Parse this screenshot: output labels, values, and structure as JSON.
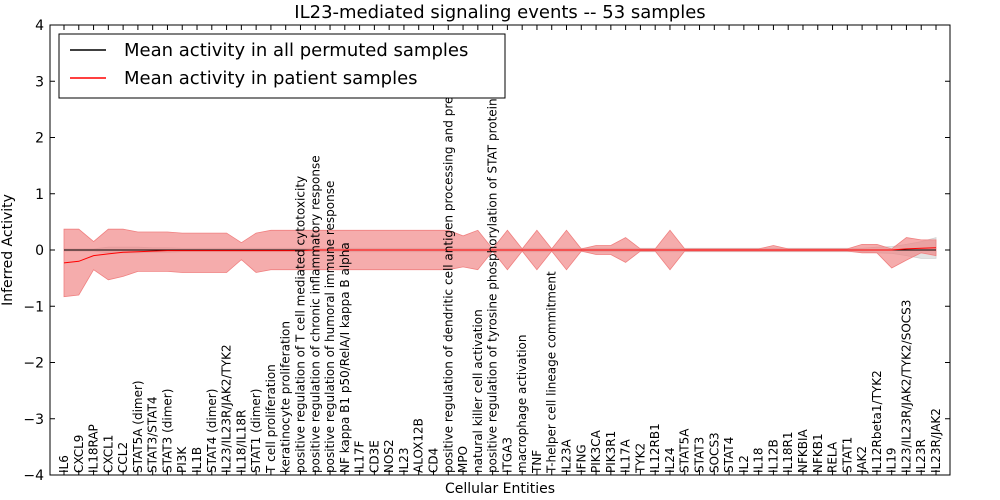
{
  "chart_data": {
    "type": "line",
    "title": "IL23-mediated signaling events -- 53 samples",
    "xlabel": "Cellular Entities",
    "ylabel": "Inferred Activity",
    "ylim": [
      -4,
      4
    ],
    "yticks": [
      -4,
      -3,
      -2,
      -1,
      0,
      1,
      2,
      3,
      4
    ],
    "ytick_labels": [
      "−4",
      "−3",
      "−2",
      "−1",
      "0",
      "1",
      "2",
      "3",
      "4"
    ],
    "legend_position": "top-left",
    "categories": [
      "IL6",
      "CXCL9",
      "IL18RAP",
      "CXCL1",
      "CCL2",
      "STAT5A (dimer)",
      "STAT3/STAT4",
      "STAT3 (dimer)",
      "PI3K",
      "IL1B",
      "STAT4 (dimer)",
      "IL23/IL23R/JAK2/TYK2",
      "IL18/IL18R",
      "STAT1 (dimer)",
      "T cell proliferation",
      "keratinocyte proliferation",
      "positive regulation of T cell mediated cytotoxicity",
      "positive regulation of chronic inflammatory response",
      "positive regulation of humoral immune response",
      "NF kappa B1 p50/RelA/I kappa B alpha",
      "IL17F",
      "CD3E",
      "NOS2",
      "IL23",
      "ALOX12B",
      "CD4",
      "positive regulation of dendritic cell antigen processing and presentation",
      "MPO",
      "natural killer cell activation",
      "positive regulation of tyrosine phosphorylation of STAT protein",
      "ITGA3",
      "macrophage activation",
      "TNF",
      "T-helper cell lineage commitment",
      "IL23A",
      "IFNG",
      "PIK3CA",
      "PIK3R1",
      "IL17A",
      "TYK2",
      "IL12RB1",
      "IL24",
      "STAT5A",
      "STAT3",
      "SOCS3",
      "STAT4",
      "IL2",
      "IL18",
      "IL12B",
      "IL18R1",
      "NFKBIA",
      "NFKB1",
      "RELA",
      "STAT1",
      "JAK2",
      "IL12Rbeta1/TYK2",
      "IL19",
      "IL23/IL23R/JAK2/TYK2/SOCS3",
      "IL23R",
      "IL23R/JAK2"
    ],
    "series": [
      {
        "name": "Mean activity in all permuted samples",
        "color": "#000000",
        "values": [
          0,
          0,
          0,
          0,
          0,
          0,
          0,
          0,
          0,
          0,
          0,
          0,
          0,
          0,
          0,
          0,
          0,
          0,
          0,
          0,
          0,
          0,
          0,
          0,
          0,
          0,
          0,
          0,
          0,
          0,
          0,
          0,
          0,
          0,
          0,
          0,
          0,
          0,
          0,
          0,
          0,
          0,
          0,
          0,
          0,
          0,
          0,
          0,
          0,
          0,
          0,
          0,
          0,
          0,
          0,
          0,
          0,
          0,
          0,
          0
        ],
        "band_upper": [
          0.02,
          0.02,
          0.02,
          0.05,
          0.05,
          0.05,
          0.04,
          0.04,
          0.03,
          0.03,
          0.03,
          0.03,
          0.03,
          0.03,
          0.03,
          0.03,
          0.03,
          0.03,
          0.03,
          0.03,
          0.03,
          0.03,
          0.03,
          0.03,
          0.03,
          0.03,
          0.03,
          0.03,
          0.03,
          0.03,
          0.03,
          0.03,
          0.03,
          0.03,
          0.03,
          0.03,
          0.03,
          0.03,
          0.03,
          0.03,
          0.03,
          0.03,
          0.03,
          0.03,
          0.03,
          0.03,
          0.03,
          0.03,
          0.03,
          0.03,
          0.03,
          0.03,
          0.03,
          0.03,
          0.03,
          0.05,
          0.06,
          0.1,
          0.15,
          0.22
        ],
        "band_lower": [
          -0.02,
          -0.02,
          -0.02,
          -0.05,
          -0.05,
          -0.05,
          -0.04,
          -0.04,
          -0.03,
          -0.03,
          -0.03,
          -0.03,
          -0.03,
          -0.03,
          -0.03,
          -0.03,
          -0.03,
          -0.03,
          -0.03,
          -0.03,
          -0.03,
          -0.03,
          -0.03,
          -0.03,
          -0.03,
          -0.03,
          -0.03,
          -0.03,
          -0.03,
          -0.03,
          -0.03,
          -0.03,
          -0.03,
          -0.03,
          -0.03,
          -0.03,
          -0.03,
          -0.03,
          -0.03,
          -0.03,
          -0.03,
          -0.03,
          -0.03,
          -0.03,
          -0.03,
          -0.03,
          -0.03,
          -0.03,
          -0.03,
          -0.03,
          -0.03,
          -0.03,
          -0.03,
          -0.03,
          -0.03,
          -0.05,
          -0.06,
          -0.1,
          -0.15,
          -0.15
        ]
      },
      {
        "name": "Mean activity in patient samples",
        "color": "#ff0000",
        "band_color": "#f08080",
        "values": [
          -0.23,
          -0.2,
          -0.1,
          -0.07,
          -0.04,
          -0.03,
          -0.02,
          -0.01,
          -0.01,
          -0.01,
          -0.01,
          -0.01,
          -0.01,
          -0.01,
          -0.01,
          -0.01,
          -0.01,
          0,
          0,
          0,
          0,
          0,
          0,
          0,
          0,
          0,
          0,
          0,
          0,
          0,
          0,
          0,
          0,
          0,
          0,
          0,
          0,
          0,
          0,
          0,
          0,
          0,
          0,
          0,
          0,
          0,
          0,
          0,
          0,
          0,
          0,
          0,
          0,
          0,
          0,
          0,
          0,
          0.02,
          0.03,
          0.04
        ],
        "band_upper": [
          0.37,
          0.37,
          0.15,
          0.37,
          0.37,
          0.32,
          0.32,
          0.32,
          0.3,
          0.3,
          0.3,
          0.3,
          0.13,
          0.3,
          0.35,
          0.35,
          0.35,
          0.35,
          0.35,
          0.35,
          0.35,
          0.35,
          0.35,
          0.35,
          0.35,
          0.35,
          0.35,
          0.25,
          0.35,
          0.02,
          0.35,
          0.02,
          0.35,
          0.02,
          0.35,
          0.02,
          0.08,
          0.08,
          0.22,
          0.02,
          0.02,
          0.35,
          0.02,
          0.02,
          0.02,
          0.02,
          0.02,
          0.02,
          0.08,
          0.02,
          0.02,
          0.02,
          0.02,
          0.02,
          0.1,
          0.1,
          0.02,
          0.22,
          0.18,
          0.18
        ],
        "band_lower": [
          -0.83,
          -0.8,
          -0.35,
          -0.53,
          -0.47,
          -0.38,
          -0.38,
          -0.38,
          -0.4,
          -0.4,
          -0.4,
          -0.4,
          -0.17,
          -0.4,
          -0.35,
          -0.35,
          -0.35,
          -0.35,
          -0.35,
          -0.35,
          -0.35,
          -0.35,
          -0.35,
          -0.35,
          -0.35,
          -0.35,
          -0.35,
          -0.3,
          -0.35,
          -0.02,
          -0.35,
          -0.02,
          -0.35,
          -0.02,
          -0.35,
          -0.02,
          -0.08,
          -0.08,
          -0.22,
          -0.02,
          -0.02,
          -0.35,
          -0.02,
          -0.02,
          -0.02,
          -0.02,
          -0.02,
          -0.02,
          -0.02,
          -0.02,
          -0.02,
          -0.02,
          -0.02,
          -0.02,
          -0.05,
          -0.05,
          -0.32,
          -0.18,
          -0.05,
          -0.1
        ]
      }
    ]
  }
}
